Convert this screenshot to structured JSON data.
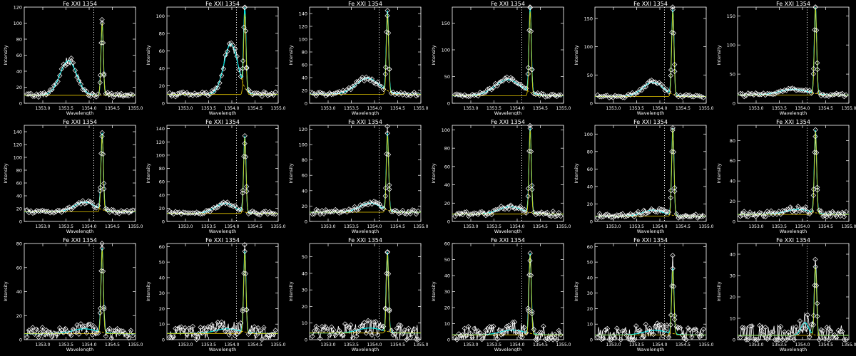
{
  "colors": {
    "background": "#000000",
    "axes": "#ffffff",
    "observed": "#ffffff",
    "fit_total": "#00e5e5",
    "fit_component": "#e5c800",
    "marker_line": "#ffffff"
  },
  "chart_data": [
    {
      "type": "line",
      "title": "Fe XXI 1354",
      "xlabel": "Wavelength",
      "ylabel": "Intensity",
      "xlim": [
        1352.6,
        1355.0
      ],
      "ylim": [
        0,
        120
      ],
      "yticks": [
        0,
        20,
        40,
        60,
        80,
        100,
        120
      ],
      "xticks": [
        "1353.0",
        "1353.5",
        "1354.0",
        "1354.5",
        "1355.0"
      ],
      "dotted_x": 1354.1,
      "series": [
        {
          "values": {
            "bg": 10,
            "broad_amp": 43,
            "broad_center": 1353.55,
            "broad_width": 0.18,
            "narrow_amp": 90,
            "narrow_center": 1354.28,
            "narrow_width": 0.025
          }
        }
      ]
    },
    {
      "type": "line",
      "title": "Fe XXI 1354",
      "xlabel": "Wavelength",
      "ylabel": "Intensity",
      "xlim": [
        1352.6,
        1355.0
      ],
      "ylim": [
        0,
        110
      ],
      "yticks": [
        0,
        20,
        40,
        60,
        80,
        100
      ],
      "xticks": [
        "1353.0",
        "1353.5",
        "1354.0",
        "1354.5",
        "1355.0"
      ],
      "dotted_x": 1354.1,
      "series": [
        {
          "values": {
            "bg": 10,
            "broad_amp": 58,
            "broad_center": 1353.98,
            "broad_width": 0.15,
            "narrow_amp": 92,
            "narrow_center": 1354.28,
            "narrow_width": 0.025
          }
        }
      ]
    },
    {
      "type": "line",
      "title": "Fe XXI 1354",
      "xlabel": "Wavelength",
      "ylabel": "Intensity",
      "xlim": [
        1352.6,
        1355.0
      ],
      "ylim": [
        0,
        150
      ],
      "yticks": [
        0,
        20,
        40,
        60,
        80,
        100,
        120,
        140
      ],
      "xticks": [
        "1353.0",
        "1353.5",
        "1354.0",
        "1354.5",
        "1355.0"
      ],
      "dotted_x": 1354.1,
      "series": [
        {
          "values": {
            "bg": 14,
            "broad_amp": 25,
            "broad_center": 1353.85,
            "broad_width": 0.25,
            "narrow_amp": 125,
            "narrow_center": 1354.28,
            "narrow_width": 0.025
          }
        }
      ]
    },
    {
      "type": "line",
      "title": "Fe XXI 1354",
      "xlabel": "Wavelength",
      "ylabel": "Intensity",
      "xlim": [
        1352.6,
        1355.0
      ],
      "ylim": [
        0,
        180
      ],
      "yticks": [
        0,
        50,
        100,
        150
      ],
      "xticks": [
        "1353.0",
        "1353.5",
        "1354.0",
        "1354.5",
        "1355.0"
      ],
      "dotted_x": 1354.1,
      "series": [
        {
          "values": {
            "bg": 14,
            "broad_amp": 30,
            "broad_center": 1353.8,
            "broad_width": 0.28,
            "narrow_amp": 158,
            "narrow_center": 1354.28,
            "narrow_width": 0.025
          }
        }
      ]
    },
    {
      "type": "line",
      "title": "Fe XXI 1354",
      "xlabel": "Wavelength",
      "ylabel": "Intensity",
      "xlim": [
        1352.6,
        1355.0
      ],
      "ylim": [
        0,
        170
      ],
      "yticks": [
        0,
        50,
        100,
        150
      ],
      "xticks": [
        "1353.0",
        "1353.5",
        "1354.0",
        "1354.5",
        "1355.0"
      ],
      "dotted_x": 1354.1,
      "series": [
        {
          "values": {
            "bg": 12,
            "broad_amp": 25,
            "broad_center": 1353.85,
            "broad_width": 0.22,
            "narrow_amp": 150,
            "narrow_center": 1354.28,
            "narrow_width": 0.025
          }
        }
      ]
    },
    {
      "type": "line",
      "title": "Fe XXI 1354",
      "xlabel": "Wavelength",
      "ylabel": "Intensity",
      "xlim": [
        1352.6,
        1355.0
      ],
      "ylim": [
        0,
        165
      ],
      "yticks": [
        0,
        50,
        100,
        150
      ],
      "xticks": [
        "1353.0",
        "1353.5",
        "1354.0",
        "1354.5",
        "1355.0"
      ],
      "dotted_x": 1354.1,
      "series": [
        {
          "values": {
            "bg": 14,
            "broad_amp": 10,
            "broad_center": 1353.8,
            "broad_width": 0.3,
            "narrow_amp": 150,
            "narrow_center": 1354.28,
            "narrow_width": 0.025
          }
        }
      ]
    },
    {
      "type": "line",
      "title": "Fe XXI 1354",
      "xlabel": "Wavelength",
      "ylabel": "Intensity",
      "xlim": [
        1352.6,
        1355.0
      ],
      "ylim": [
        0,
        150
      ],
      "yticks": [
        0,
        20,
        40,
        60,
        80,
        100,
        120,
        140
      ],
      "xticks": [
        "1353.0",
        "1353.5",
        "1354.0",
        "1354.5",
        "1355.0"
      ],
      "dotted_x": 1354.1,
      "series": [
        {
          "values": {
            "bg": 15,
            "broad_amp": 15,
            "broad_center": 1353.9,
            "broad_width": 0.22,
            "narrow_amp": 120,
            "narrow_center": 1354.28,
            "narrow_width": 0.025
          }
        }
      ]
    },
    {
      "type": "line",
      "title": "Fe XXI 1354",
      "xlabel": "Wavelength",
      "ylabel": "Intensity",
      "xlim": [
        1352.6,
        1355.0
      ],
      "ylim": [
        0,
        145
      ],
      "yticks": [
        0,
        20,
        40,
        60,
        80,
        100,
        120,
        140
      ],
      "xticks": [
        "1353.0",
        "1353.5",
        "1354.0",
        "1354.5",
        "1355.0"
      ],
      "dotted_x": 1354.1,
      "series": [
        {
          "values": {
            "bg": 12,
            "broad_amp": 15,
            "broad_center": 1353.85,
            "broad_width": 0.22,
            "narrow_amp": 115,
            "narrow_center": 1354.28,
            "narrow_width": 0.025
          }
        }
      ]
    },
    {
      "type": "line",
      "title": "Fe XXI 1354",
      "xlabel": "Wavelength",
      "ylabel": "Intensity",
      "xlim": [
        1352.6,
        1355.0
      ],
      "ylim": [
        0,
        125
      ],
      "yticks": [
        0,
        20,
        40,
        60,
        80,
        100,
        120
      ],
      "xticks": [
        "1353.0",
        "1353.5",
        "1354.0",
        "1354.5",
        "1355.0"
      ],
      "dotted_x": 1354.1,
      "series": [
        {
          "values": {
            "bg": 12,
            "broad_amp": 12,
            "broad_center": 1353.9,
            "broad_width": 0.22,
            "narrow_amp": 100,
            "narrow_center": 1354.28,
            "narrow_width": 0.025
          }
        }
      ]
    },
    {
      "type": "line",
      "title": "Fe XXI 1354",
      "xlabel": "Wavelength",
      "ylabel": "Intensity",
      "xlim": [
        1352.6,
        1355.0
      ],
      "ylim": [
        0,
        105
      ],
      "yticks": [
        0,
        20,
        40,
        60,
        80,
        100
      ],
      "xticks": [
        "1353.0",
        "1353.5",
        "1354.0",
        "1354.5",
        "1355.0"
      ],
      "dotted_x": 1354.1,
      "series": [
        {
          "values": {
            "bg": 8,
            "broad_amp": 8,
            "broad_center": 1353.85,
            "broad_width": 0.25,
            "narrow_amp": 92,
            "narrow_center": 1354.28,
            "narrow_width": 0.025
          }
        }
      ]
    },
    {
      "type": "line",
      "title": "Fe XXI 1354",
      "xlabel": "Wavelength",
      "ylabel": "Intensity",
      "xlim": [
        1352.6,
        1355.0
      ],
      "ylim": [
        0,
        110
      ],
      "yticks": [
        0,
        20,
        40,
        60,
        80,
        100
      ],
      "xticks": [
        "1353.0",
        "1353.5",
        "1354.0",
        "1354.5",
        "1355.0"
      ],
      "dotted_x": 1354.1,
      "series": [
        {
          "values": {
            "bg": 6,
            "broad_amp": 7,
            "broad_center": 1353.85,
            "broad_width": 0.22,
            "narrow_amp": 100,
            "narrow_center": 1354.28,
            "narrow_width": 0.025
          }
        }
      ]
    },
    {
      "type": "line",
      "title": "Fe XXI 1354",
      "xlabel": "Wavelength",
      "ylabel": "Intensity",
      "xlim": [
        1352.6,
        1355.0
      ],
      "ylim": [
        0,
        95
      ],
      "yticks": [
        0,
        20,
        40,
        60,
        80
      ],
      "xticks": [
        "1353.0",
        "1353.5",
        "1354.0",
        "1354.5",
        "1355.0"
      ],
      "dotted_x": 1354.1,
      "series": [
        {
          "values": {
            "bg": 7,
            "broad_amp": 5,
            "broad_center": 1353.9,
            "broad_width": 0.25,
            "narrow_amp": 82,
            "narrow_center": 1354.28,
            "narrow_width": 0.025
          }
        }
      ]
    },
    {
      "type": "line",
      "title": "Fe XXI 1354",
      "xlabel": "Wavelength",
      "ylabel": "Intensity",
      "xlim": [
        1352.6,
        1355.0
      ],
      "ylim": [
        0,
        80
      ],
      "yticks": [
        0,
        20,
        40,
        60,
        80
      ],
      "xticks": [
        "1353.0",
        "1353.5",
        "1354.0",
        "1354.5",
        "1355.0"
      ],
      "dotted_x": 1354.1,
      "series": [
        {
          "values": {
            "bg": 5,
            "broad_amp": 4,
            "broad_center": 1353.9,
            "broad_width": 0.25,
            "narrow_amp": 70,
            "narrow_center": 1354.28,
            "narrow_width": 0.025
          }
        }
      ]
    },
    {
      "type": "line",
      "title": "Fe XXI 1354",
      "xlabel": "Wavelength",
      "ylabel": "Intensity",
      "xlim": [
        1352.6,
        1355.0
      ],
      "ylim": [
        0,
        62
      ],
      "yticks": [
        0,
        10,
        20,
        30,
        40,
        50,
        60
      ],
      "xticks": [
        "1353.0",
        "1353.5",
        "1354.0",
        "1354.5",
        "1355.0"
      ],
      "dotted_x": 1354.1,
      "series": [
        {
          "values": {
            "bg": 4,
            "broad_amp": 3,
            "broad_center": 1353.9,
            "broad_width": 0.25,
            "narrow_amp": 52,
            "narrow_center": 1354.28,
            "narrow_width": 0.025
          }
        }
      ]
    },
    {
      "type": "line",
      "title": "Fe XXI 1354",
      "xlabel": "Wavelength",
      "ylabel": "Intensity",
      "xlim": [
        1352.6,
        1355.0
      ],
      "ylim": [
        0,
        58
      ],
      "yticks": [
        0,
        10,
        20,
        30,
        40,
        50
      ],
      "xticks": [
        "1353.0",
        "1353.5",
        "1354.0",
        "1354.5",
        "1355.0"
      ],
      "dotted_x": 1354.1,
      "series": [
        {
          "values": {
            "bg": 4,
            "broad_amp": 3,
            "broad_center": 1353.9,
            "broad_width": 0.25,
            "narrow_amp": 48,
            "narrow_center": 1354.28,
            "narrow_width": 0.025
          }
        }
      ]
    },
    {
      "type": "line",
      "title": "Fe XXI 1354",
      "xlabel": "Wavelength",
      "ylabel": "Intensity",
      "xlim": [
        1352.6,
        1355.0
      ],
      "ylim": [
        0,
        60
      ],
      "yticks": [
        0,
        10,
        20,
        30,
        40,
        50,
        60
      ],
      "xticks": [
        "1353.0",
        "1353.5",
        "1354.0",
        "1354.5",
        "1355.0"
      ],
      "dotted_x": 1354.1,
      "series": [
        {
          "values": {
            "bg": 3,
            "broad_amp": 3,
            "broad_center": 1353.9,
            "broad_width": 0.25,
            "narrow_amp": 50,
            "narrow_center": 1354.28,
            "narrow_width": 0.025
          }
        }
      ]
    },
    {
      "type": "line",
      "title": "Fe XXI 1354",
      "xlabel": "Wavelength",
      "ylabel": "Intensity",
      "xlim": [
        1352.6,
        1355.0
      ],
      "ylim": [
        0,
        62
      ],
      "yticks": [
        0,
        10,
        20,
        30,
        40,
        50,
        60
      ],
      "xticks": [
        "1353.0",
        "1353.5",
        "1354.0",
        "1354.5",
        "1355.0"
      ],
      "dotted_x": 1354.1,
      "series": [
        {
          "values": {
            "bg": 3,
            "broad_amp": 3,
            "broad_center": 1353.9,
            "broad_width": 0.25,
            "narrow_amp": 42,
            "narrow_center": 1354.28,
            "narrow_width": 0.025
          }
        }
      ]
    },
    {
      "type": "line",
      "title": "Fe XXI 1354",
      "xlabel": "Wavelength",
      "ylabel": "Intensity",
      "xlim": [
        1352.6,
        1355.0
      ],
      "ylim": [
        0,
        45
      ],
      "yticks": [
        0,
        10,
        20,
        30,
        40
      ],
      "xticks": [
        "1353.0",
        "1353.5",
        "1354.0",
        "1354.5",
        "1355.0"
      ],
      "dotted_x": 1354.1,
      "series": [
        {
          "values": {
            "bg": 2,
            "broad_amp": 6,
            "broad_center": 1354.05,
            "broad_width": 0.08,
            "narrow_amp": 32,
            "narrow_center": 1354.28,
            "narrow_width": 0.025
          }
        }
      ]
    }
  ]
}
